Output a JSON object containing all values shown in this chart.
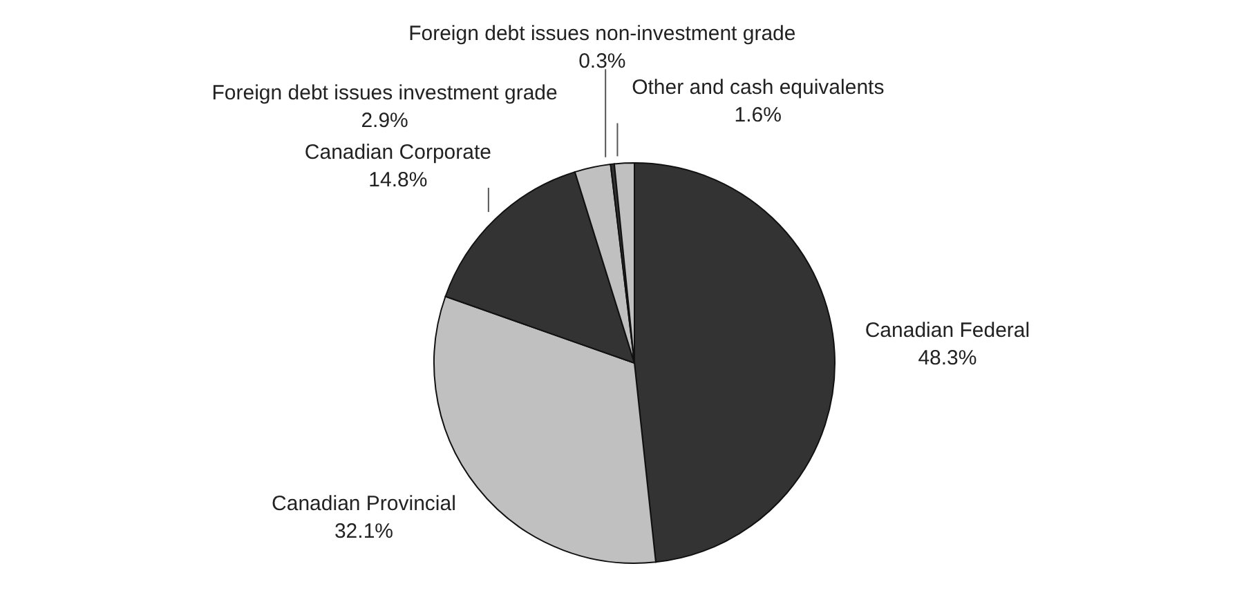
{
  "chart_data": {
    "type": "pie",
    "categories": [
      "Canadian Federal",
      "Canadian Provincial",
      "Canadian Corporate",
      "Foreign debt issues investment grade",
      "Foreign debt issues non-investment grade",
      "Other and cash equivalents"
    ],
    "values": [
      48.3,
      32.1,
      14.8,
      2.9,
      0.3,
      1.6
    ],
    "value_labels": [
      "48.3%",
      "32.1%",
      "14.8%",
      "2.9%",
      "0.3%",
      "1.6%"
    ],
    "colors": [
      "#333333",
      "#c0c0c0",
      "#333333",
      "#c0c0c0",
      "#333333",
      "#c0c0c0"
    ]
  }
}
